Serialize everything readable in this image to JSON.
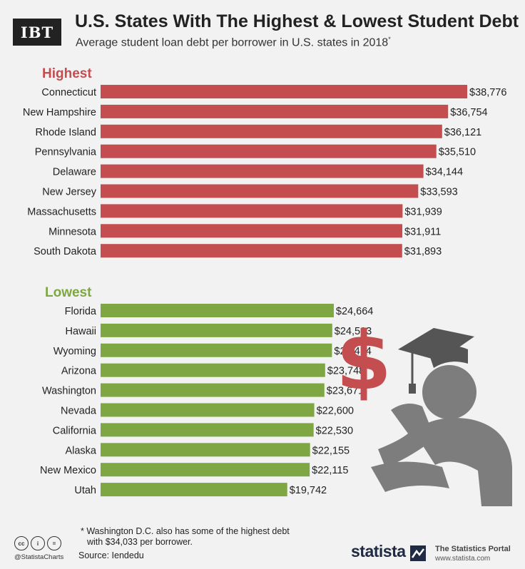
{
  "header": {
    "logo": "IBT",
    "title": "U.S. States With The Highest & Lowest Student Debt",
    "subtitle": "Average student loan debt per borrower in U.S. states in 2018",
    "subtitle_mark": "*"
  },
  "chart_data": [
    {
      "type": "bar",
      "orientation": "horizontal",
      "title": "Highest",
      "categories": [
        "Connecticut",
        "New Hampshire",
        "Rhode Island",
        "Pennsylvania",
        "Delaware",
        "New Jersey",
        "Massachusetts",
        "Minnesota",
        "South Dakota"
      ],
      "values": [
        38776,
        36754,
        36121,
        35510,
        34144,
        33593,
        31939,
        31911,
        31893
      ],
      "value_labels": [
        "$38,776",
        "$36,754",
        "$36,121",
        "$35,510",
        "$34,144",
        "$33,593",
        "$31,939",
        "$31,911",
        "$31,893"
      ],
      "color": "#c44d4f",
      "grid": false
    },
    {
      "type": "bar",
      "orientation": "horizontal",
      "title": "Lowest",
      "categories": [
        "Florida",
        "Hawaii",
        "Wyoming",
        "Arizona",
        "Washington",
        "Nevada",
        "California",
        "Alaska",
        "New Mexico",
        "Utah"
      ],
      "values": [
        24664,
        24503,
        24474,
        23748,
        23671,
        22600,
        22530,
        22155,
        22115,
        19742
      ],
      "value_labels": [
        "$24,664",
        "$24,503",
        "$24,474",
        "$23,748",
        "$23,671",
        "$22,600",
        "$22,530",
        "$22,155",
        "$22,115",
        "$19,742"
      ],
      "color": "#7ea643",
      "grid": false
    }
  ],
  "colors": {
    "highest": "#c44d4f",
    "lowest": "#7ea643",
    "illustration_gray": "#7d7d7d",
    "illustration_dark": "#555555",
    "dollar": "#c44d4f"
  },
  "illustration": {
    "dollar_symbol": "$",
    "icon": "graduate-with-debt-icon"
  },
  "footer": {
    "footnote_line1": "* Washington D.C. also has some of the highest debt",
    "footnote_line2": "with $34,033 per borrower.",
    "source": "Source: Iendedu",
    "handle": "@StatistaCharts",
    "cc_icons": [
      "cc",
      "i",
      "="
    ],
    "brand": "statista",
    "portal_title": "The Statistics Portal",
    "portal_url": "www.statista.com"
  }
}
